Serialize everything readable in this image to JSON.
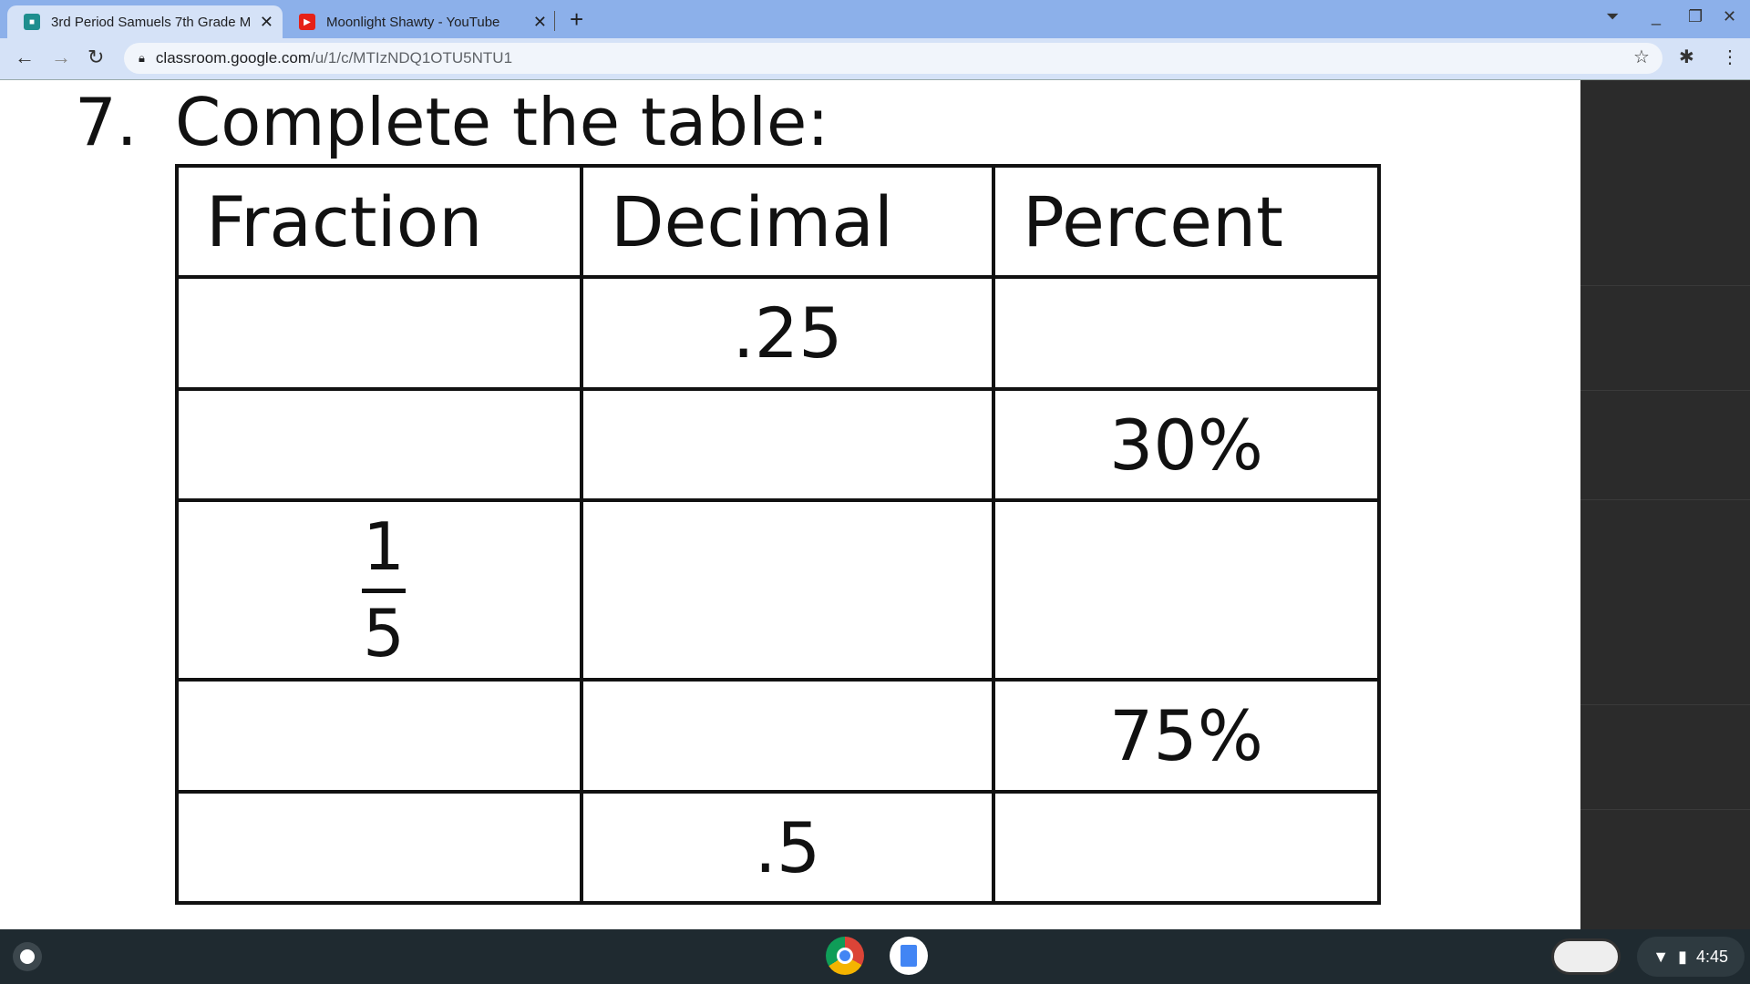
{
  "browser": {
    "tabs": [
      {
        "title": "3rd Period Samuels 7th Grade M",
        "icon": "classroom-icon",
        "active": true
      },
      {
        "title": "Moonlight Shawty - YouTube",
        "icon": "youtube-icon",
        "active": false
      }
    ],
    "url_host": "classroom.google.com",
    "url_path": "/u/1/c/MTIzNDQ1OTU5NTU1"
  },
  "content": {
    "number": "7.",
    "title": "Complete the table:",
    "table": {
      "headers": [
        "Fraction",
        "Decimal",
        "Percent"
      ],
      "rows": [
        {
          "fraction": "",
          "decimal": ".25",
          "percent": ""
        },
        {
          "fraction": "",
          "decimal": "",
          "percent": "30%"
        },
        {
          "fraction_num": "1",
          "fraction_den": "5",
          "decimal": "",
          "percent": ""
        },
        {
          "fraction": "",
          "decimal": "",
          "percent": "75%"
        },
        {
          "fraction": "",
          "decimal": ".5",
          "percent": ""
        }
      ]
    }
  },
  "shelf": {
    "time": "4:45"
  }
}
